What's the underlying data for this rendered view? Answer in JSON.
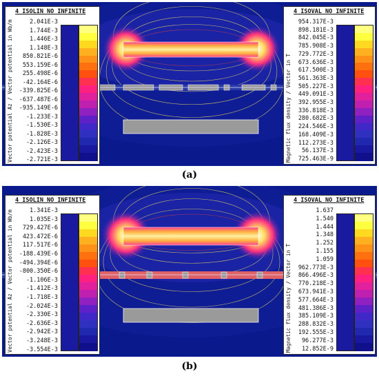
{
  "figures": [
    {
      "caption": "(a)",
      "legend_left": {
        "title": "4_ISOLIN_NO_INFINITE",
        "axis_label": "Vector potential Az / Vector potential in Wb/m",
        "values": [
          "2.041E-3",
          "1.744E-3",
          "1.446E-3",
          "1.148E-3",
          "850.821E-6",
          "553.159E-6",
          "255.498E-6",
          "-42.164E-6",
          "-339.825E-6",
          "-637.487E-6",
          "-935.149E-6",
          "-1.233E-3",
          "-1.530E-3",
          "-1.828E-3",
          "-2.126E-3",
          "-2.423E-3",
          "-2.721E-3"
        ]
      },
      "legend_right": {
        "title": "4_ISOVAL_NO_INFINITE",
        "axis_label": "Magnetic flux density / Vector in T",
        "values": [
          "954.317E-3",
          "898.181E-3",
          "842.045E-3",
          "785.908E-3",
          "729.772E-3",
          "673.636E-3",
          "617.500E-3",
          "561.363E-3",
          "505.227E-3",
          "449.091E-3",
          "392.955E-3",
          "336.818E-3",
          "280.682E-3",
          "224.546E-3",
          "168.409E-3",
          "112.273E-3",
          "56.137E-3",
          "725.463E-9"
        ]
      }
    },
    {
      "caption": "(b)",
      "legend_left": {
        "title": "4_ISOLIN_NO_INFINITE",
        "axis_label": "Vector potential Az / Vector potential in Wb/m",
        "values": [
          "1.341E-3",
          "1.035E-3",
          "729.427E-6",
          "423.472E-6",
          "117.517E-6",
          "-188.439E-6",
          "-494.394E-6",
          "-800.350E-6",
          "-1.106E-3",
          "-1.412E-3",
          "-1.718E-3",
          "-2.024E-3",
          "-2.330E-3",
          "-2.636E-3",
          "-2.942E-3",
          "-3.248E-3",
          "-3.554E-3"
        ]
      },
      "legend_right": {
        "title": "4_ISOVAL_NO_INFINITE",
        "axis_label": "Magnetic flux density / Vector in T",
        "values": [
          "1.637",
          "1.540",
          "1.444",
          "1.348",
          "1.252",
          "1.155",
          "1.059",
          "962.773E-3",
          "866.496E-3",
          "770.218E-3",
          "673.941E-3",
          "577.664E-3",
          "481.386E-3",
          "385.109E-3",
          "288.832E-3",
          "192.555E-3",
          "96.277E-3",
          "12.852E-9"
        ]
      }
    }
  ],
  "colors": {
    "background_field": "#0a1a8c",
    "magnet": "#ff9a40",
    "steel_gray": "#9a9a9a",
    "flux_lines": "#e8d860",
    "scale_isoval": [
      "#ffff80",
      "#ffff40",
      "#ffd820",
      "#ffb020",
      "#ff9018",
      "#ff7010",
      "#ff5010",
      "#ff3050",
      "#ff2080",
      "#e0209c",
      "#c020b0",
      "#9020c0",
      "#6020c8",
      "#4028c8",
      "#3030c0",
      "#2028b0",
      "#1818a0",
      "#10108c"
    ]
  }
}
